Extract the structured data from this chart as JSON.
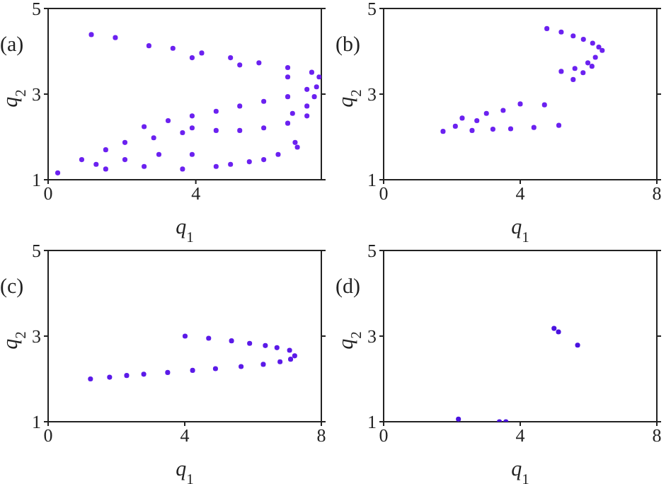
{
  "chart_data": [
    {
      "type": "scatter",
      "xlabel": "q$_{1}$",
      "ylabel": "q$_{2}$",
      "annotations": [
        "(a)"
      ],
      "xlim": [
        0,
        7.4
      ],
      "xticks": [
        0,
        4
      ],
      "ylim": [
        1,
        5
      ],
      "yticks": [
        1,
        3,
        5
      ],
      "marker": "circle",
      "series": [
        {
          "color": "#6b21f0",
          "x": [
            1.17,
            1.82,
            2.73,
            3.38,
            4.16,
            4.94,
            5.71,
            6.49,
            7.14,
            7.34,
            3.9,
            5.19,
            6.49,
            7.27,
            7.21,
            7.01,
            6.62,
            2.6,
            3.25,
            3.9,
            4.55,
            5.19,
            5.84,
            6.49,
            7.01,
            3.9,
            4.55,
            5.19,
            5.84,
            6.49,
            7.01,
            0.26,
            0.91,
            1.56,
            2.08,
            2.86,
            3.64,
            1.3,
            2.08,
            3.0,
            3.9,
            1.56,
            2.6,
            3.64,
            4.55,
            5.45,
            6.23,
            6.75,
            6.69,
            5.84,
            4.94
          ],
          "values": [
            4.39,
            4.32,
            4.13,
            4.07,
            3.96,
            3.85,
            3.73,
            3.62,
            3.51,
            3.4,
            3.85,
            3.68,
            3.4,
            3.17,
            2.94,
            2.72,
            2.55,
            2.24,
            2.38,
            2.49,
            2.6,
            2.72,
            2.83,
            2.94,
            3.11,
            2.21,
            2.15,
            2.15,
            2.21,
            2.32,
            2.49,
            1.16,
            1.47,
            1.7,
            1.87,
            1.98,
            2.1,
            1.36,
            1.47,
            1.59,
            1.59,
            1.25,
            1.31,
            1.25,
            1.31,
            1.42,
            1.59,
            1.76,
            1.87,
            1.47,
            1.36
          ]
        }
      ]
    },
    {
      "type": "scatter",
      "xlabel": "q$_{1}$",
      "ylabel": "q$_{2}$",
      "annotations": [
        "(b)"
      ],
      "xlim": [
        0,
        8
      ],
      "xticks": [
        0,
        4,
        8
      ],
      "ylim": [
        1,
        5
      ],
      "yticks": [
        1,
        3,
        5
      ],
      "marker": "circle",
      "series": [
        {
          "color": "#6b21f0",
          "x": [
            4.78,
            5.2,
            5.55,
            5.85,
            6.12,
            6.3,
            6.4,
            6.2,
            5.98,
            5.6,
            5.2,
            6.1,
            5.84,
            5.55,
            1.74,
            2.3,
            2.73,
            3.01,
            3.5,
            4.0,
            4.71,
            2.59,
            3.2,
            3.72,
            4.4,
            5.13,
            2.1
          ],
          "values": [
            4.53,
            4.45,
            4.36,
            4.28,
            4.19,
            4.1,
            4.02,
            3.86,
            3.73,
            3.6,
            3.53,
            3.65,
            3.5,
            3.34,
            2.13,
            2.44,
            2.38,
            2.55,
            2.62,
            2.77,
            2.75,
            2.15,
            2.18,
            2.19,
            2.22,
            2.27,
            2.25
          ]
        }
      ]
    },
    {
      "type": "scatter",
      "xlabel": "q$_{1}$",
      "ylabel": "q$_{2}$",
      "annotations": [
        "(c)"
      ],
      "xlim": [
        0,
        8
      ],
      "xticks": [
        0,
        4,
        8
      ],
      "ylim": [
        1,
        5
      ],
      "yticks": [
        1,
        3,
        5
      ],
      "marker": "circle",
      "series": [
        {
          "color": "#5b1ae8",
          "x": [
            1.24,
            1.8,
            2.3,
            2.8,
            3.5,
            4.23,
            4.9,
            5.65,
            6.3,
            6.79,
            7.1,
            7.22,
            7.07,
            6.7,
            6.36,
            5.9,
            5.37,
            4.7,
            4.01
          ],
          "values": [
            2.0,
            2.04,
            2.08,
            2.11,
            2.15,
            2.2,
            2.24,
            2.29,
            2.34,
            2.4,
            2.46,
            2.54,
            2.67,
            2.73,
            2.78,
            2.83,
            2.89,
            2.95,
            3.0
          ]
        }
      ]
    },
    {
      "type": "scatter",
      "xlabel": "q$_{1}$",
      "ylabel": "q$_{2}$",
      "annotations": [
        "(d)"
      ],
      "xlim": [
        0,
        8
      ],
      "xticks": [
        0,
        4,
        8
      ],
      "ylim": [
        1,
        5
      ],
      "yticks": [
        1,
        3,
        5
      ],
      "marker": "circle",
      "series": [
        {
          "color": "#4a12e0",
          "x": [
            2.19,
            3.39,
            3.58,
            4.99,
            5.12,
            5.68
          ],
          "values": [
            1.06,
            1.0,
            1.0,
            3.18,
            3.1,
            2.79
          ]
        }
      ]
    }
  ]
}
